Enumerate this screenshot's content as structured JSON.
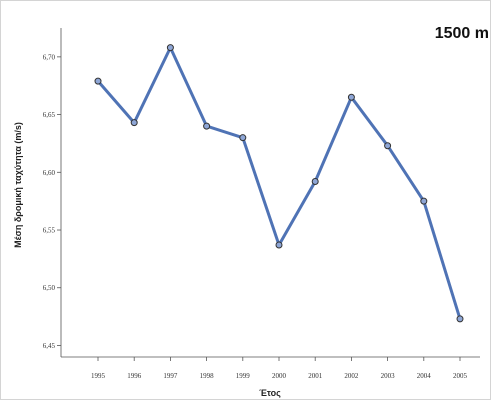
{
  "chart_data": {
    "type": "line",
    "title": "1500 m",
    "xlabel": "Έτος",
    "ylabel": "Μέση δρομική ταχύτητα (m/s)",
    "categories": [
      "1995",
      "1996",
      "1997",
      "1998",
      "1999",
      "2000",
      "2001",
      "2002",
      "2003",
      "2004",
      "2005"
    ],
    "series": [
      {
        "values": [
          6.679,
          6.643,
          6.708,
          6.64,
          6.63,
          6.537,
          6.592,
          6.665,
          6.623,
          6.575,
          6.473
        ]
      }
    ],
    "yticks": [
      "6,45",
      "6,50",
      "6,55",
      "6,60",
      "6,65",
      "6,70"
    ],
    "ylim": [
      6.44,
      6.725
    ],
    "grid": false,
    "colors": {
      "line": "#4f73b5",
      "marker_stroke": "#333333",
      "marker_fill": "#8ea6d6"
    }
  }
}
